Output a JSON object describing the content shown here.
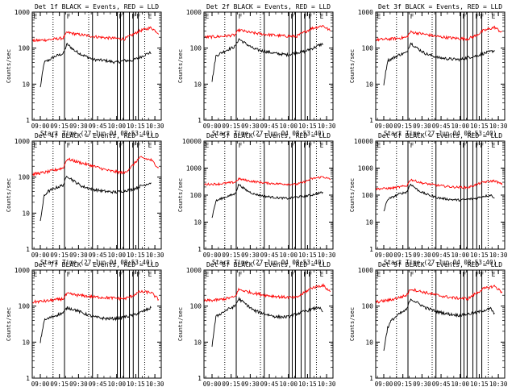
{
  "figure": {
    "title_template": "Det {det}f BLACK = Events, RED = LLD",
    "xlabel": "Start Time (27-Jun-04 08:53:40)",
    "ylabel": "Counts/sec",
    "x_ticks": [
      "09:00",
      "09:15",
      "09:30",
      "09:45",
      "10:00",
      "10:15",
      "10:30"
    ],
    "x_range_hours": [
      8.8944,
      10.5833
    ],
    "y_scale": "log",
    "colors": {
      "events": "#000000",
      "lld": "#ff0000",
      "axes": "#000000"
    }
  },
  "markers": {
    "dotted_x": [
      9.1667,
      9.6333,
      10.3667
    ],
    "solid_x": [
      9.3167,
      9.6833,
      10.0083,
      10.05,
      10.0917,
      10.1667,
      10.2167,
      10.2833
    ],
    "labels": [
      {
        "x": 8.9,
        "text": "E"
      },
      {
        "x": 9.3333,
        "text": "F"
      },
      {
        "x": 10.0167,
        "text": "F"
      },
      {
        "x": 10.1833,
        "text": "F"
      },
      {
        "x": 10.25,
        "text": "F"
      },
      {
        "x": 10.4,
        "text": "E"
      }
    ]
  },
  "chart_data": [
    {
      "type": "line",
      "title": "Det 1f BLACK = Events, RED = LLD",
      "det": 1,
      "ylim": [
        1,
        1000
      ],
      "y_ticks": [
        "1",
        "10",
        "100",
        "1000"
      ],
      "series": [
        {
          "name": "Events",
          "color": "#000000",
          "x": [
            9.0,
            9.05,
            9.1,
            9.2,
            9.3,
            9.35,
            9.45,
            9.55,
            9.7,
            9.85,
            10.0,
            10.1,
            10.2,
            10.3,
            10.4,
            10.45
          ],
          "y": [
            8,
            40,
            45,
            60,
            70,
            130,
            85,
            65,
            48,
            45,
            40,
            45,
            45,
            55,
            70,
            75
          ]
        },
        {
          "name": "LLD",
          "color": "#ff0000",
          "x": [
            8.9,
            9.1,
            9.3,
            9.35,
            9.5,
            9.7,
            9.9,
            10.1,
            10.2,
            10.3,
            10.45,
            10.55
          ],
          "y": [
            160,
            170,
            190,
            270,
            240,
            210,
            190,
            180,
            230,
            300,
            370,
            260
          ]
        }
      ]
    },
    {
      "type": "line",
      "title": "Det 2f BLACK = Events, RED = LLD",
      "det": 2,
      "ylim": [
        1,
        1000
      ],
      "y_ticks": [
        "1",
        "10",
        "100",
        "1000"
      ],
      "series": [
        {
          "name": "Events",
          "color": "#000000",
          "x": [
            9.0,
            9.05,
            9.1,
            9.2,
            9.3,
            9.35,
            9.45,
            9.55,
            9.7,
            9.85,
            10.0,
            10.1,
            10.2,
            10.3,
            10.4,
            10.45
          ],
          "y": [
            12,
            60,
            70,
            90,
            110,
            180,
            130,
            95,
            80,
            70,
            65,
            75,
            80,
            95,
            120,
            130
          ]
        },
        {
          "name": "LLD",
          "color": "#ff0000",
          "x": [
            8.9,
            9.1,
            9.3,
            9.35,
            9.5,
            9.7,
            9.9,
            10.1,
            10.2,
            10.3,
            10.45,
            10.55
          ],
          "y": [
            200,
            210,
            230,
            320,
            270,
            240,
            220,
            210,
            270,
            350,
            420,
            300
          ]
        }
      ]
    },
    {
      "type": "line",
      "title": "Det 3f BLACK = Events, RED = LLD",
      "det": 3,
      "ylim": [
        1,
        1000
      ],
      "y_ticks": [
        "1",
        "10",
        "100",
        "1000"
      ],
      "series": [
        {
          "name": "Events",
          "color": "#000000",
          "x": [
            9.0,
            9.05,
            9.1,
            9.2,
            9.3,
            9.35,
            9.45,
            9.55,
            9.7,
            9.85,
            10.0,
            10.1,
            10.2,
            10.3,
            10.4,
            10.45
          ],
          "y": [
            10,
            45,
            50,
            65,
            75,
            140,
            95,
            70,
            55,
            50,
            48,
            55,
            60,
            70,
            80,
            85
          ]
        },
        {
          "name": "LLD",
          "color": "#ff0000",
          "x": [
            8.9,
            9.1,
            9.3,
            9.35,
            9.5,
            9.7,
            9.9,
            10.1,
            10.2,
            10.3,
            10.45,
            10.55
          ],
          "y": [
            170,
            180,
            200,
            280,
            250,
            210,
            190,
            180,
            220,
            300,
            380,
            270
          ]
        }
      ]
    },
    {
      "type": "line",
      "title": "Det 4f BLACK = Events, RED = LLD",
      "det": 4,
      "ylim": [
        1,
        1000
      ],
      "y_ticks": [
        "1",
        "10",
        "100",
        "1000"
      ],
      "series": [
        {
          "name": "Events",
          "color": "#000000",
          "x": [
            9.0,
            9.05,
            9.1,
            9.2,
            9.3,
            9.35,
            9.45,
            9.55,
            9.7,
            9.85,
            10.0,
            10.1,
            10.2,
            10.3,
            10.4,
            10.45
          ],
          "y": [
            6,
            30,
            40,
            50,
            60,
            110,
            75,
            55,
            45,
            40,
            38,
            42,
            45,
            55,
            65,
            70
          ]
        },
        {
          "name": "LLD",
          "color": "#ff0000",
          "x": [
            8.9,
            9.1,
            9.3,
            9.35,
            9.5,
            9.7,
            9.9,
            10.1,
            10.2,
            10.3,
            10.45,
            10.55
          ],
          "y": [
            120,
            140,
            180,
            320,
            260,
            200,
            150,
            130,
            200,
            350,
            300,
            180
          ]
        }
      ]
    },
    {
      "type": "line",
      "title": "Det 5f BLACK = Events, RED = LLD",
      "det": 5,
      "ylim": [
        1,
        10000
      ],
      "y_ticks": [
        "1",
        "10",
        "100",
        "1000",
        "10000"
      ],
      "series": [
        {
          "name": "Events",
          "color": "#000000",
          "x": [
            9.0,
            9.05,
            9.1,
            9.2,
            9.3,
            9.35,
            9.45,
            9.55,
            9.7,
            9.85,
            10.0,
            10.1,
            10.2,
            10.3,
            10.4,
            10.45
          ],
          "y": [
            15,
            60,
            70,
            90,
            110,
            250,
            150,
            110,
            90,
            80,
            75,
            85,
            90,
            100,
            120,
            125
          ]
        },
        {
          "name": "LLD",
          "color": "#ff0000",
          "x": [
            8.9,
            9.1,
            9.3,
            9.35,
            9.5,
            9.7,
            9.9,
            10.1,
            10.2,
            10.3,
            10.45,
            10.55
          ],
          "y": [
            250,
            260,
            300,
            400,
            330,
            280,
            260,
            250,
            300,
            400,
            480,
            380
          ]
        }
      ]
    },
    {
      "type": "line",
      "title": "Det 6f BLACK = Events, RED = LLD",
      "det": 6,
      "ylim": [
        1,
        10000
      ],
      "y_ticks": [
        "1",
        "10",
        "100",
        "1000",
        "10000"
      ],
      "series": [
        {
          "name": "Events",
          "color": "#000000",
          "x": [
            9.0,
            9.05,
            9.1,
            9.2,
            9.3,
            9.35,
            9.45,
            9.55,
            9.7,
            9.85,
            10.0,
            10.1,
            10.2,
            10.3,
            10.4,
            10.45
          ],
          "y": [
            25,
            70,
            80,
            110,
            130,
            260,
            150,
            110,
            80,
            70,
            65,
            70,
            75,
            90,
            100,
            80
          ]
        },
        {
          "name": "LLD",
          "color": "#ff0000",
          "x": [
            8.9,
            9.1,
            9.3,
            9.35,
            9.5,
            9.7,
            9.9,
            10.1,
            10.2,
            10.3,
            10.45,
            10.55
          ],
          "y": [
            170,
            180,
            220,
            380,
            280,
            230,
            200,
            190,
            240,
            300,
            340,
            250
          ]
        }
      ]
    },
    {
      "type": "line",
      "title": "Det 7f BLACK = Events, RED = LLD",
      "det": 7,
      "ylim": [
        1,
        1000
      ],
      "y_ticks": [
        "1",
        "10",
        "100",
        "1000"
      ],
      "series": [
        {
          "name": "Events",
          "color": "#000000",
          "x": [
            9.0,
            9.05,
            9.1,
            9.2,
            9.3,
            9.35,
            9.45,
            9.55,
            9.7,
            9.85,
            10.0,
            10.1,
            10.2,
            10.3,
            10.4,
            10.45
          ],
          "y": [
            10,
            40,
            45,
            55,
            65,
            90,
            80,
            65,
            50,
            45,
            45,
            50,
            55,
            65,
            80,
            90
          ]
        },
        {
          "name": "LLD",
          "color": "#ff0000",
          "x": [
            8.9,
            9.1,
            9.3,
            9.35,
            9.5,
            9.7,
            9.9,
            10.1,
            10.2,
            10.3,
            10.45,
            10.55
          ],
          "y": [
            130,
            140,
            160,
            220,
            200,
            180,
            170,
            160,
            190,
            250,
            240,
            150
          ]
        }
      ]
    },
    {
      "type": "line",
      "title": "Det 8f BLACK = Events, RED = LLD",
      "det": 8,
      "ylim": [
        1,
        1000
      ],
      "y_ticks": [
        "1",
        "10",
        "100",
        "1000"
      ],
      "series": [
        {
          "name": "Events",
          "color": "#000000",
          "x": [
            9.0,
            9.05,
            9.1,
            9.2,
            9.3,
            9.35,
            9.45,
            9.55,
            9.7,
            9.85,
            10.0,
            10.1,
            10.2,
            10.3,
            10.4,
            10.45
          ],
          "y": [
            8,
            50,
            60,
            80,
            100,
            160,
            110,
            75,
            60,
            50,
            50,
            60,
            70,
            80,
            95,
            65
          ]
        },
        {
          "name": "LLD",
          "color": "#ff0000",
          "x": [
            8.9,
            9.1,
            9.3,
            9.35,
            9.5,
            9.7,
            9.9,
            10.1,
            10.2,
            10.3,
            10.45,
            10.55
          ],
          "y": [
            140,
            150,
            180,
            290,
            240,
            200,
            180,
            170,
            230,
            320,
            380,
            250
          ]
        }
      ]
    },
    {
      "type": "line",
      "title": "Det 9f BLACK = Events, RED = LLD",
      "det": 9,
      "ylim": [
        1,
        1000
      ],
      "y_ticks": [
        "1",
        "10",
        "100",
        "1000"
      ],
      "series": [
        {
          "name": "Events",
          "color": "#000000",
          "x": [
            9.0,
            9.05,
            9.1,
            9.2,
            9.3,
            9.35,
            9.45,
            9.55,
            9.7,
            9.85,
            10.0,
            10.1,
            10.2,
            10.3,
            10.4,
            10.45
          ],
          "y": [
            6,
            25,
            40,
            60,
            80,
            160,
            120,
            90,
            70,
            60,
            55,
            60,
            65,
            75,
            85,
            60
          ]
        },
        {
          "name": "LLD",
          "color": "#ff0000",
          "x": [
            8.9,
            9.1,
            9.3,
            9.35,
            9.5,
            9.7,
            9.9,
            10.1,
            10.2,
            10.3,
            10.45,
            10.55
          ],
          "y": [
            130,
            150,
            200,
            300,
            250,
            200,
            170,
            160,
            220,
            300,
            360,
            240
          ]
        }
      ]
    }
  ]
}
